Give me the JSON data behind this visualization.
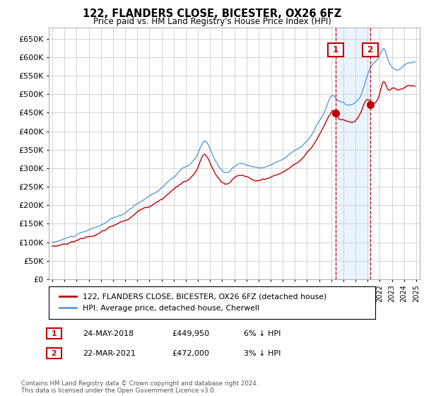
{
  "title": "122, FLANDERS CLOSE, BICESTER, OX26 6FZ",
  "subtitle": "Price paid vs. HM Land Registry's House Price Index (HPI)",
  "legend_entry1": "122, FLANDERS CLOSE, BICESTER, OX26 6FZ (detached house)",
  "legend_entry2": "HPI: Average price, detached house, Cherwell",
  "annotation1": {
    "label": "1",
    "date": "24-MAY-2018",
    "price": "£449,950",
    "change": "6% ↓ HPI",
    "x_year": 2018.38
  },
  "annotation2": {
    "label": "2",
    "date": "22-MAR-2021",
    "price": "£472,000",
    "change": "3% ↓ HPI",
    "x_year": 2021.22
  },
  "footer": "Contains HM Land Registry data © Crown copyright and database right 2024.\nThis data is licensed under the Open Government Licence v3.0.",
  "hpi_color": "#5b9bd5",
  "price_color": "#c00000",
  "annotation_color": "#c00000",
  "shade_color": "#ddeeff",
  "ylim": [
    0,
    680000
  ],
  "xlim_start": 1994.7,
  "xlim_end": 2025.3,
  "ytick_step": 50000,
  "background_color": "#ffffff",
  "grid_color": "#cccccc"
}
